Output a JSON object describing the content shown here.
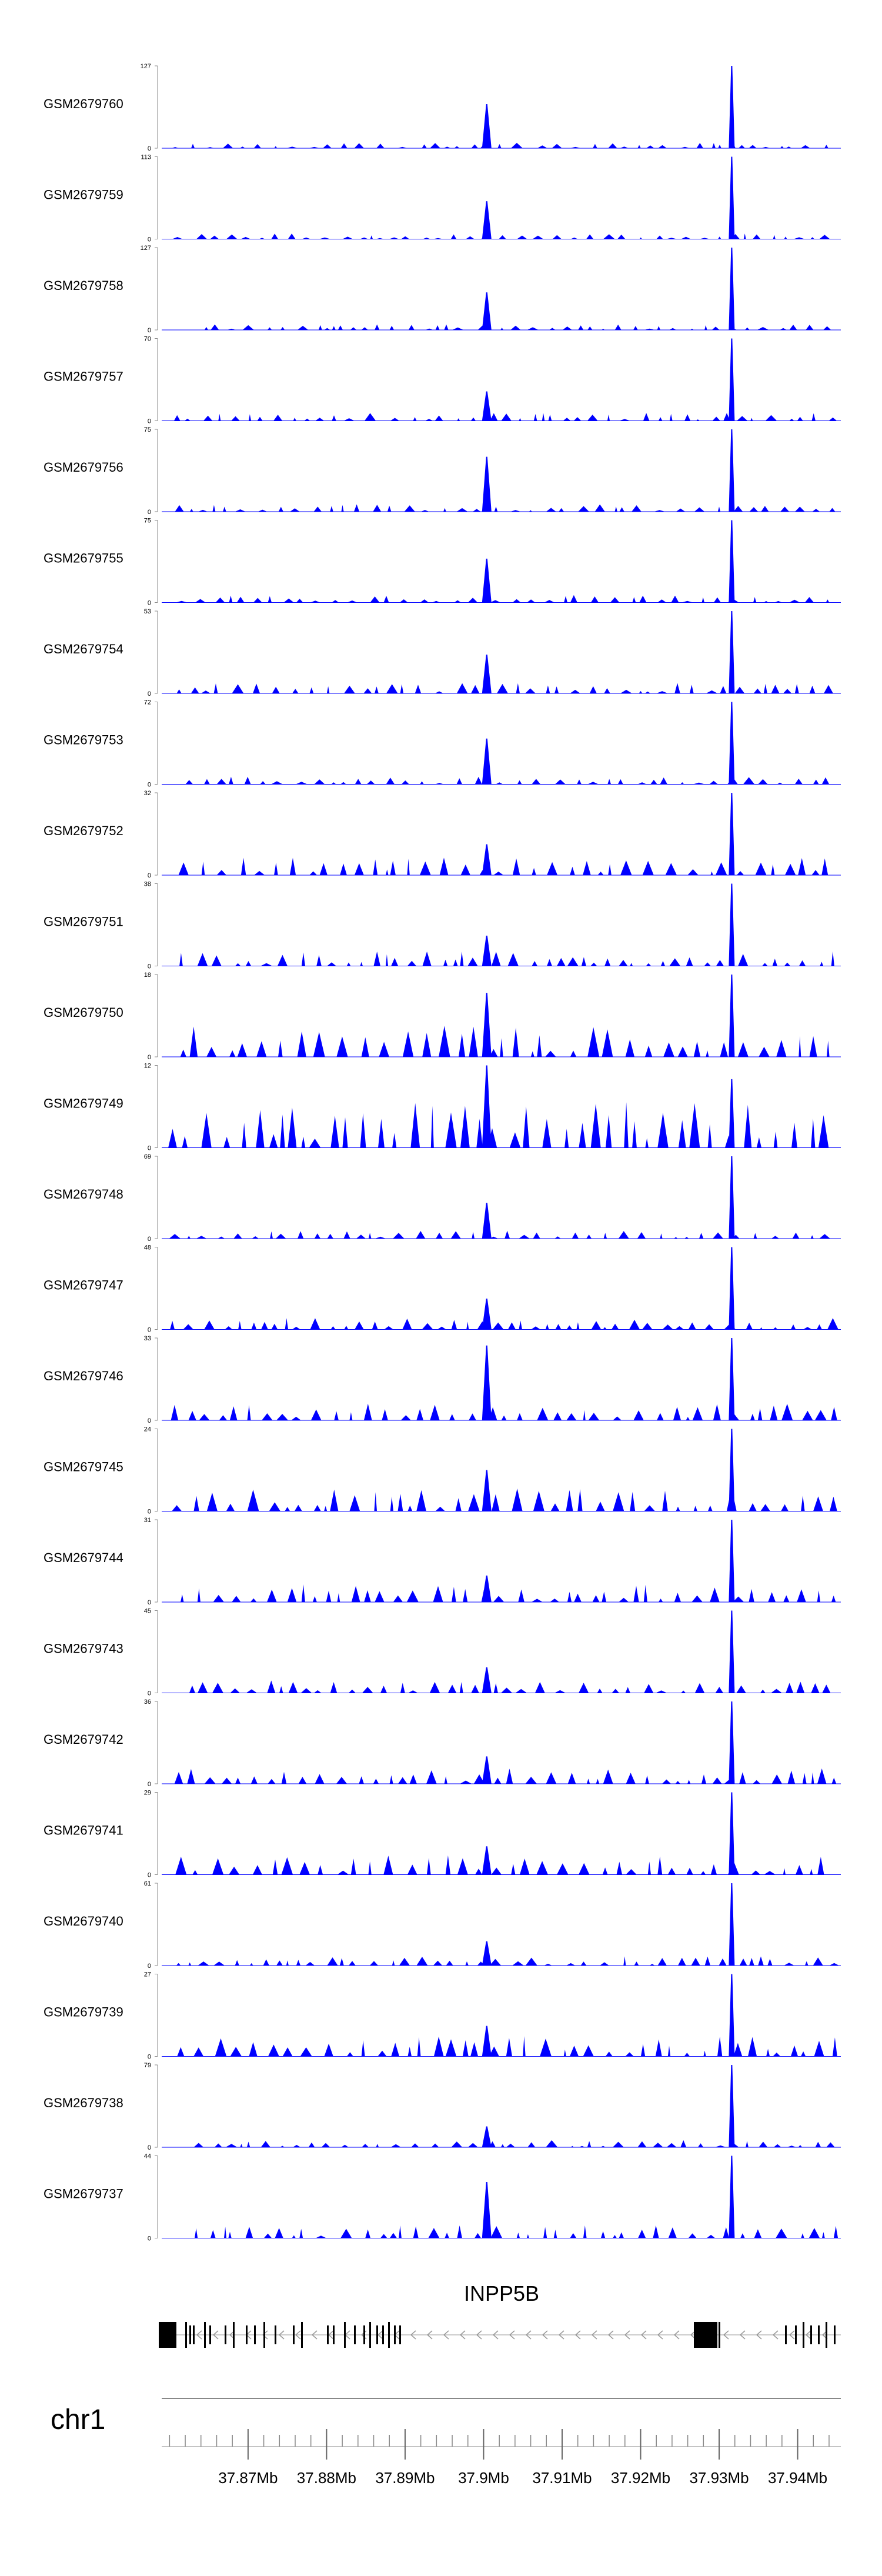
{
  "chart_data": {
    "type": "area",
    "title": "",
    "chromosome": "chr1",
    "gene": "INPP5B",
    "color": "#0000FF",
    "x_range_mb": [
      37.859,
      37.9455
    ],
    "x_ticks": [
      "37.87Mb",
      "37.88Mb",
      "37.89Mb",
      "37.9Mb",
      "37.91Mb",
      "37.92Mb",
      "37.93Mb",
      "37.94Mb"
    ],
    "x_tick_values_mb": [
      37.87,
      37.88,
      37.89,
      37.9,
      37.91,
      37.92,
      37.93,
      37.94
    ],
    "peaks_mb": [
      37.9004,
      37.9316
    ],
    "series": [
      {
        "name": "GSM2679760",
        "ymin": 0,
        "ymax": 127,
        "start_mb": 37.8595,
        "peak_values": [
          68,
          127
        ]
      },
      {
        "name": "GSM2679759",
        "ymin": 0,
        "ymax": 113,
        "start_mb": 37.8595,
        "peak_values": [
          52,
          113
        ]
      },
      {
        "name": "GSM2679758",
        "ymin": 0,
        "ymax": 127,
        "start_mb": 37.8635,
        "peak_values": [
          58,
          127
        ]
      },
      {
        "name": "GSM2679757",
        "ymin": 0,
        "ymax": 70,
        "start_mb": 37.8595,
        "peak_values": [
          25,
          70
        ]
      },
      {
        "name": "GSM2679756",
        "ymin": 0,
        "ymax": 75,
        "start_mb": 37.8595,
        "peak_values": [
          50,
          75
        ]
      },
      {
        "name": "GSM2679755",
        "ymin": 0,
        "ymax": 75,
        "start_mb": 37.8595,
        "peak_values": [
          40,
          75
        ]
      },
      {
        "name": "GSM2679754",
        "ymin": 0,
        "ymax": 53,
        "start_mb": 37.8595,
        "peak_values": [
          25,
          53
        ]
      },
      {
        "name": "GSM2679753",
        "ymin": 0,
        "ymax": 72,
        "start_mb": 37.8605,
        "peak_values": [
          40,
          72
        ]
      },
      {
        "name": "GSM2679752",
        "ymin": 0,
        "ymax": 32,
        "start_mb": 37.8595,
        "peak_values": [
          12,
          32
        ]
      },
      {
        "name": "GSM2679751",
        "ymin": 0,
        "ymax": 38,
        "start_mb": 37.8595,
        "peak_values": [
          14,
          38
        ]
      },
      {
        "name": "GSM2679750",
        "ymin": 0,
        "ymax": 18,
        "start_mb": 37.8595,
        "peak_values": [
          14,
          18
        ]
      },
      {
        "name": "GSM2679749",
        "ymin": 0,
        "ymax": 12,
        "start_mb": 37.8595,
        "peak_values": [
          12,
          10
        ]
      },
      {
        "name": "GSM2679748",
        "ymin": 0,
        "ymax": 69,
        "start_mb": 37.8595,
        "peak_values": [
          30,
          69
        ]
      },
      {
        "name": "GSM2679747",
        "ymin": 0,
        "ymax": 48,
        "start_mb": 37.8595,
        "peak_values": [
          18,
          48
        ]
      },
      {
        "name": "GSM2679746",
        "ymin": 0,
        "ymax": 33,
        "start_mb": 37.8595,
        "peak_values": [
          30,
          33
        ]
      },
      {
        "name": "GSM2679745",
        "ymin": 0,
        "ymax": 24,
        "start_mb": 37.8595,
        "peak_values": [
          12,
          24
        ]
      },
      {
        "name": "GSM2679744",
        "ymin": 0,
        "ymax": 31,
        "start_mb": 37.8605,
        "peak_values": [
          10,
          31
        ]
      },
      {
        "name": "GSM2679743",
        "ymin": 0,
        "ymax": 45,
        "start_mb": 37.8615,
        "peak_values": [
          14,
          45
        ]
      },
      {
        "name": "GSM2679742",
        "ymin": 0,
        "ymax": 36,
        "start_mb": 37.8595,
        "peak_values": [
          12,
          36
        ]
      },
      {
        "name": "GSM2679741",
        "ymin": 0,
        "ymax": 29,
        "start_mb": 37.8595,
        "peak_values": [
          10,
          29
        ]
      },
      {
        "name": "GSM2679740",
        "ymin": 0,
        "ymax": 61,
        "start_mb": 37.8595,
        "peak_values": [
          18,
          61
        ]
      },
      {
        "name": "GSM2679739",
        "ymin": 0,
        "ymax": 27,
        "start_mb": 37.8595,
        "peak_values": [
          10,
          27
        ]
      },
      {
        "name": "GSM2679738",
        "ymin": 0,
        "ymax": 79,
        "start_mb": 37.8615,
        "peak_values": [
          20,
          79
        ]
      },
      {
        "name": "GSM2679737",
        "ymin": 0,
        "ymax": 44,
        "start_mb": 37.8615,
        "peak_values": [
          30,
          44
        ]
      }
    ]
  }
}
